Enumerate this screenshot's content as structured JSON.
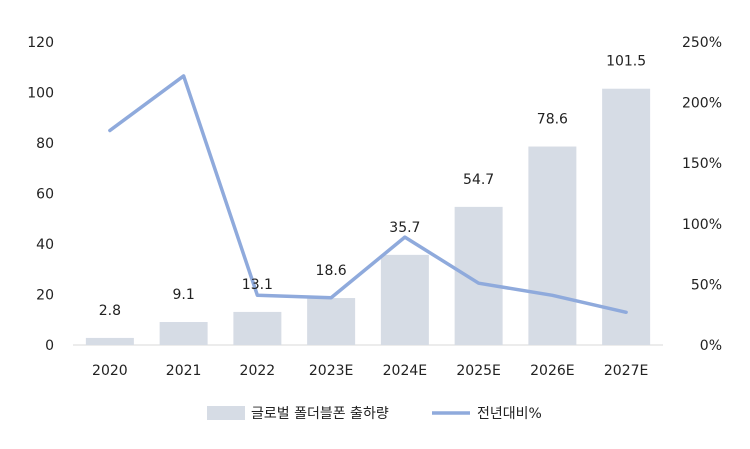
{
  "chart_data": {
    "type": "bar",
    "categories": [
      "2020",
      "2021",
      "2022",
      "2023E",
      "2024E",
      "2025E",
      "2026E",
      "2027E"
    ],
    "series": [
      {
        "name": "글로벌 폴더블폰 출하량",
        "type": "bar",
        "axis": "left",
        "values": [
          2.8,
          9.1,
          13.1,
          18.6,
          35.7,
          54.7,
          78.6,
          101.5
        ],
        "labels": [
          "2.8",
          "9.1",
          "13.1",
          "18.6",
          "35.7",
          "54.7",
          "78.6",
          "101.5"
        ],
        "color": "#d6dce5"
      },
      {
        "name": "전년대비%",
        "type": "line",
        "axis": "right",
        "values": [
          177,
          222,
          41,
          39,
          89,
          51,
          41,
          27
        ],
        "color": "#8faadc"
      }
    ],
    "y_left": {
      "min": 0,
      "max": 120,
      "ticks": [
        "0",
        "20",
        "40",
        "60",
        "80",
        "100",
        "120"
      ]
    },
    "y_right": {
      "min": 0,
      "max": 250,
      "ticks": [
        "0%",
        "50%",
        "100%",
        "150%",
        "200%",
        "250%"
      ]
    },
    "grid": false,
    "legend": "bottom"
  }
}
